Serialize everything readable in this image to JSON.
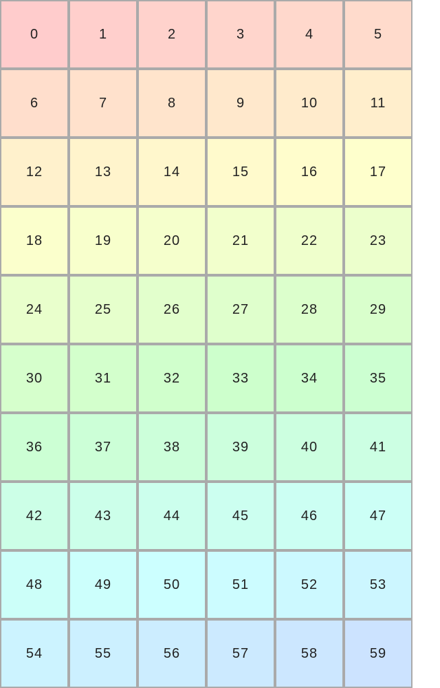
{
  "grid": {
    "columns": 6,
    "cells": [
      "0",
      "1",
      "2",
      "3",
      "4",
      "5",
      "6",
      "7",
      "8",
      "9",
      "10",
      "11",
      "12",
      "13",
      "14",
      "15",
      "16",
      "17",
      "18",
      "19",
      "20",
      "21",
      "22",
      "23",
      "24",
      "25",
      "26",
      "27",
      "28",
      "29",
      "30",
      "31",
      "32",
      "33",
      "34",
      "35",
      "36",
      "37",
      "38",
      "39",
      "40",
      "41",
      "42",
      "43",
      "44",
      "45",
      "46",
      "47",
      "48",
      "49",
      "50",
      "51",
      "52",
      "53",
      "54",
      "55",
      "56",
      "57",
      "58",
      "59"
    ],
    "border_color": "#aaaaaa",
    "first_color": "#ffcccc",
    "last_color": "#cce0ff"
  }
}
